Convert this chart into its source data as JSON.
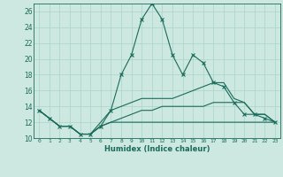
{
  "xlabel": "Humidex (Indice chaleur)",
  "bg_color": "#cce8e0",
  "line_color": "#1a6b5a",
  "grid_color": "#aad4c8",
  "xlim": [
    -0.5,
    23.5
  ],
  "ylim": [
    10,
    27
  ],
  "yticks": [
    10,
    12,
    14,
    16,
    18,
    20,
    22,
    24,
    26
  ],
  "xticks": [
    0,
    1,
    2,
    3,
    4,
    5,
    6,
    7,
    8,
    9,
    10,
    11,
    12,
    13,
    14,
    15,
    16,
    17,
    18,
    19,
    20,
    21,
    22,
    23
  ],
  "line1_x": [
    0,
    1,
    2,
    3,
    4,
    5,
    6,
    7,
    8,
    9,
    10,
    11,
    12,
    13,
    14,
    15,
    16,
    17,
    18,
    19,
    20,
    21,
    22,
    23
  ],
  "line1_y": [
    13.5,
    12.5,
    11.5,
    11.5,
    10.5,
    10.5,
    11.5,
    13.5,
    18.0,
    20.5,
    25.0,
    27.0,
    25.0,
    20.5,
    18.0,
    20.5,
    19.5,
    17.0,
    16.5,
    14.5,
    13.0,
    13.0,
    12.5,
    12.0
  ],
  "line2_x": [
    0,
    1,
    2,
    3,
    4,
    5,
    6,
    7,
    8,
    9,
    10,
    11,
    12,
    13,
    14,
    15,
    16,
    17,
    18,
    19,
    20,
    21,
    22,
    23
  ],
  "line2_y": [
    13.5,
    12.5,
    11.5,
    11.5,
    10.5,
    10.5,
    12.0,
    13.5,
    14.0,
    14.5,
    15.0,
    15.0,
    15.0,
    15.0,
    15.5,
    16.0,
    16.5,
    17.0,
    17.0,
    15.0,
    14.5,
    13.0,
    13.0,
    12.0
  ],
  "line3_x": [
    0,
    1,
    2,
    3,
    4,
    5,
    6,
    7,
    8,
    9,
    10,
    11,
    12,
    13,
    14,
    15,
    16,
    17,
    18,
    19,
    20,
    21,
    22,
    23
  ],
  "line3_y": [
    13.5,
    12.5,
    11.5,
    11.5,
    10.5,
    10.5,
    11.5,
    12.0,
    12.5,
    13.0,
    13.5,
    13.5,
    14.0,
    14.0,
    14.0,
    14.0,
    14.0,
    14.5,
    14.5,
    14.5,
    14.5,
    13.0,
    13.0,
    12.0
  ],
  "line4_x": [
    0,
    1,
    2,
    3,
    4,
    5,
    6,
    7,
    8,
    9,
    10,
    11,
    12,
    13,
    14,
    15,
    16,
    17,
    18,
    19,
    20,
    21,
    22,
    23
  ],
  "line4_y": [
    13.5,
    12.5,
    11.5,
    11.5,
    10.5,
    10.5,
    11.5,
    12.0,
    12.0,
    12.0,
    12.0,
    12.0,
    12.0,
    12.0,
    12.0,
    12.0,
    12.0,
    12.0,
    12.0,
    12.0,
    12.0,
    12.0,
    12.0,
    12.0
  ]
}
